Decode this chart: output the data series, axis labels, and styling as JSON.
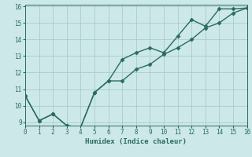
{
  "xlabel": "Humidex (Indice chaleur)",
  "ylabel": "",
  "line1_x": [
    0,
    1,
    2,
    3,
    4,
    5,
    6,
    7,
    8,
    9,
    10,
    11,
    12,
    13,
    14,
    15,
    16
  ],
  "line1_y": [
    10.6,
    9.1,
    9.5,
    8.8,
    8.7,
    10.8,
    11.5,
    12.8,
    13.2,
    13.5,
    13.2,
    14.2,
    15.2,
    14.8,
    15.85,
    15.85,
    15.9
  ],
  "line2_x": [
    0,
    1,
    2,
    3,
    4,
    5,
    6,
    7,
    8,
    9,
    10,
    11,
    12,
    13,
    14,
    15,
    16
  ],
  "line2_y": [
    10.6,
    9.1,
    9.5,
    8.8,
    8.7,
    10.8,
    11.5,
    11.5,
    12.2,
    12.5,
    13.1,
    13.5,
    14.0,
    14.7,
    15.0,
    15.6,
    15.9
  ],
  "line_color": "#2a6b62",
  "bg_color": "#cde8e8",
  "grid_color": "#a8cccc",
  "xlim": [
    0,
    16
  ],
  "ylim": [
    8.8,
    16.1
  ],
  "xticks": [
    0,
    1,
    2,
    3,
    4,
    5,
    6,
    7,
    8,
    9,
    10,
    11,
    12,
    13,
    14,
    15,
    16
  ],
  "yticks": [
    9,
    10,
    11,
    12,
    13,
    14,
    15,
    16
  ],
  "marker": "D",
  "markersize": 2.5,
  "linewidth": 1.0,
  "tick_fontsize": 5.5,
  "xlabel_fontsize": 6.5
}
